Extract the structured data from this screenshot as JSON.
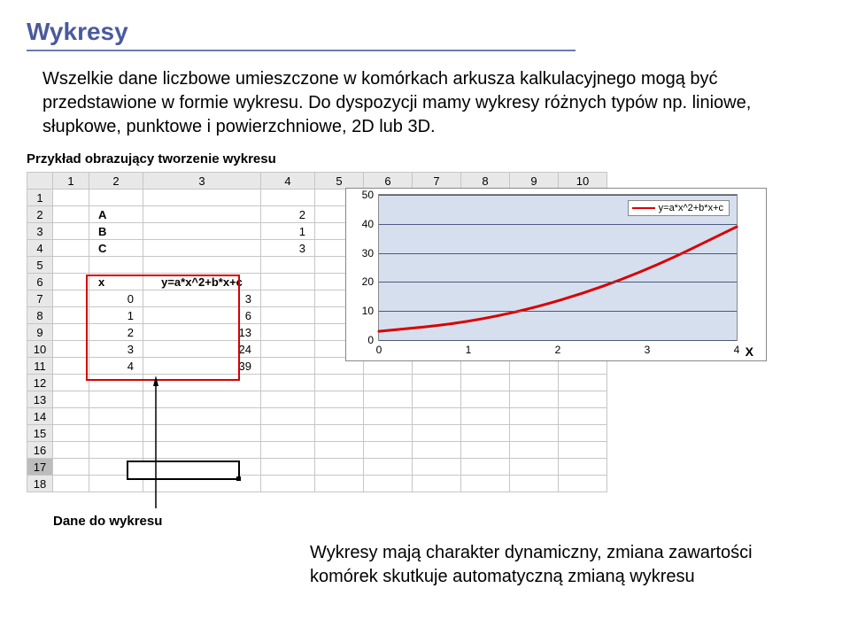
{
  "title": "Wykresy",
  "body": "Wszelkie dane liczbowe umieszczone w komórkach arkusza kalkulacyjnego mogą być przedstawione w formie wykresu. Do dyspozycji mamy wykresy różnych typów np. liniowe, słupkowe, punktowe i powierzchniowe, 2D lub 3D.",
  "subhead": "Przykład obrazujący tworzenie wykresu",
  "sheet": {
    "col_headers": [
      "1",
      "2",
      "3",
      "4",
      "5",
      "6",
      "7",
      "8",
      "9",
      "10"
    ],
    "row_headers": [
      "1",
      "2",
      "3",
      "4",
      "5",
      "6",
      "7",
      "8",
      "9",
      "10",
      "11",
      "12",
      "13",
      "14",
      "15",
      "16",
      "17",
      "18"
    ],
    "coeffs": [
      {
        "label": "A",
        "val": "2"
      },
      {
        "label": "B",
        "val": "1"
      },
      {
        "label": "C",
        "val": "3"
      }
    ],
    "table_head": {
      "x": "x",
      "y": "y=a*x^2+b*x+c"
    },
    "data_rows": [
      {
        "x": "0",
        "y": "3"
      },
      {
        "x": "1",
        "y": "6"
      },
      {
        "x": "2",
        "y": "13"
      },
      {
        "x": "3",
        "y": "24"
      },
      {
        "x": "4",
        "y": "39"
      }
    ],
    "selected_row": 17
  },
  "chart": {
    "type": "line",
    "background_color": "#d6dfee",
    "grid_color": "#4d5a80",
    "line_color": "#d80000",
    "line_width": 3,
    "legend_label": "y=a*x^2+b*x+c",
    "x_values": [
      0,
      1,
      2,
      3,
      4
    ],
    "y_values": [
      3,
      6,
      13,
      24,
      39
    ],
    "ylim": [
      0,
      50
    ],
    "yticks": [
      0,
      10,
      20,
      30,
      40,
      50
    ],
    "xticks": [
      0,
      1,
      2,
      3,
      4
    ],
    "x_axis_label": "X",
    "title_fontsize": 12,
    "label_fontsize": 12
  },
  "caption": "Dane do wykresu",
  "bottom": "Wykresy mają charakter dynamiczny, zmiana zawartości komórek skutkuje automatyczną zmianą wykresu"
}
